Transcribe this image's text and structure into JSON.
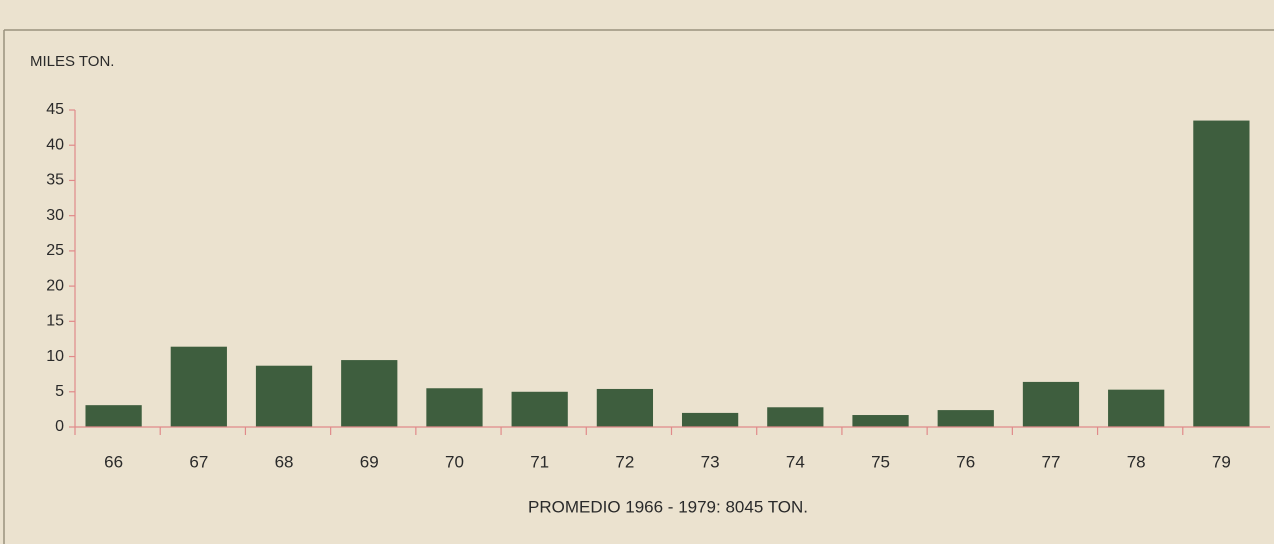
{
  "chart_data": {
    "type": "bar",
    "y_label": "MILES TON.",
    "x_label": "PROMEDIO 1966 - 1979: 8045 TON.",
    "categories": [
      "66",
      "67",
      "68",
      "69",
      "70",
      "71",
      "72",
      "73",
      "74",
      "75",
      "76",
      "77",
      "78",
      "79"
    ],
    "values": [
      3.1,
      11.4,
      8.7,
      9.5,
      5.5,
      5,
      5.4,
      2,
      2.8,
      1.7,
      2.4,
      6.4,
      5.3,
      43.5
    ],
    "color": "#3e5e3e",
    "ylim": [
      0,
      45
    ],
    "yticks": [
      0,
      5,
      10,
      15,
      20,
      25,
      30,
      35,
      40,
      45
    ],
    "grid": false
  }
}
